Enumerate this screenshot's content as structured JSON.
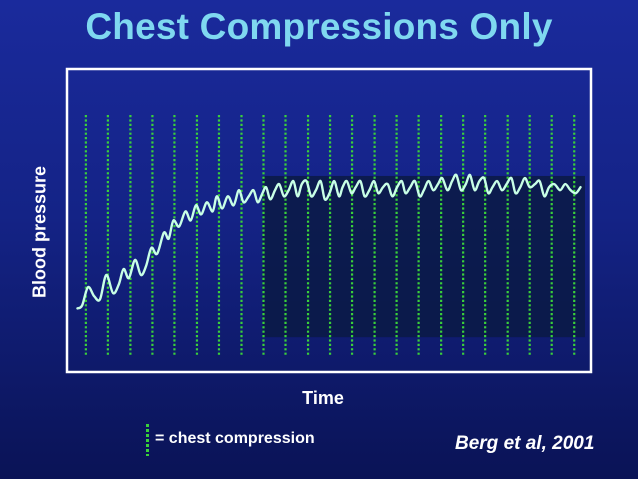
{
  "slide": {
    "title": "Chest Compressions Only",
    "citation": "Berg et al, 2001"
  },
  "legend": {
    "label": "= chest compression",
    "marker_color": "#3ad13a"
  },
  "colors": {
    "background": "#142386",
    "title": "#7fd8f0",
    "plot_border": "#ffffff",
    "inset_region": "#0b1a44",
    "compression_lines": "#3ad13a",
    "pressure_curve": "#c8ffe6"
  },
  "chart_data": {
    "type": "line",
    "title": "",
    "xlabel": "Time",
    "ylabel": "Blood pressure",
    "xlim": [
      0,
      100
    ],
    "ylim": [
      0,
      100
    ],
    "grid": false,
    "legend": "bottom-left",
    "compression_marks": [
      3.6,
      7.8,
      12.1,
      16.3,
      20.5,
      24.8,
      29.0,
      33.3,
      37.5,
      41.7,
      46.0,
      50.2,
      54.4,
      58.7,
      62.9,
      67.1,
      71.4,
      75.6,
      79.8,
      84.1,
      88.3,
      92.5,
      96.8
    ],
    "highlight_region": {
      "x": [
        37.3,
        100
      ],
      "y": [
        11.5,
        64.7
      ]
    },
    "series": [
      {
        "x": [
          2.0,
          2.9,
          4.0,
          5.2,
          6.3,
          7.5,
          8.8,
          9.9,
          10.8,
          11.8,
          13.0,
          14.1,
          15.1,
          16.1,
          17.2,
          18.5,
          19.4,
          20.3,
          21.4,
          22.6,
          23.6,
          24.6,
          25.6,
          26.7,
          27.8,
          28.6,
          29.6,
          30.7,
          31.8,
          32.8,
          33.7,
          34.7,
          35.6,
          36.4,
          37.3,
          38.0,
          38.8,
          39.7,
          40.5,
          41.4,
          42.3,
          43.2,
          44.0,
          44.8,
          45.7,
          46.6,
          47.5,
          48.4,
          49.2,
          50.1,
          51.0,
          51.9,
          52.6,
          53.4,
          54.3,
          55.1,
          56.0,
          56.8,
          57.7,
          58.6,
          59.4,
          60.3,
          61.2,
          62.1,
          63.0,
          63.9,
          64.6,
          65.5,
          66.4,
          67.3,
          68.1,
          69.0,
          69.9,
          70.8,
          71.6,
          72.6,
          73.5,
          74.3,
          75.2,
          76.1,
          76.9,
          77.8,
          78.7,
          79.6,
          80.4,
          81.2,
          82.1,
          83.0,
          83.9,
          84.8,
          85.6,
          86.5,
          87.4,
          88.3,
          89.3,
          90.2,
          91.1,
          92.0,
          93.0,
          94.1,
          95.1,
          96.1,
          97.1,
          98.0
        ],
        "values": [
          21,
          22,
          28,
          25,
          24,
          32,
          26,
          29,
          34,
          31,
          37,
          32,
          35,
          41,
          39,
          46,
          44,
          50,
          48,
          53,
          50,
          55,
          52,
          56,
          53,
          58,
          54,
          58,
          55,
          60,
          56,
          58,
          60,
          56,
          59,
          61,
          57,
          60,
          62,
          58,
          60,
          63,
          58,
          62,
          63,
          58,
          60,
          63,
          57,
          59,
          63,
          58,
          61,
          63,
          59,
          61,
          63,
          58,
          60,
          63,
          59,
          61,
          62,
          58,
          61,
          63,
          59,
          61,
          63,
          58,
          60,
          63,
          60,
          62,
          64,
          60,
          63,
          65,
          60,
          62,
          65,
          60,
          63,
          64,
          59,
          61,
          63,
          60,
          62,
          64,
          59,
          61,
          64,
          61,
          62,
          63,
          58,
          61,
          62,
          60,
          62,
          60,
          59,
          61
        ]
      }
    ]
  }
}
